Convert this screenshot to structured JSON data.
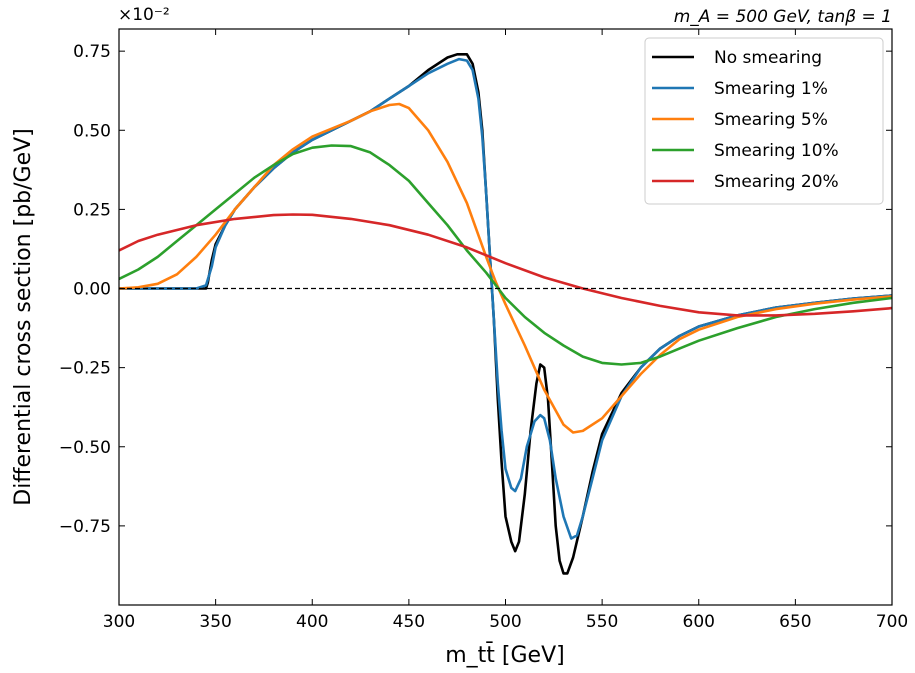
{
  "chart_data": {
    "type": "line",
    "title_right": "m_A = 500 GeV, tanβ = 1",
    "multiplier": "×10⁻²",
    "xlabel": "m_tt̄ [GeV]",
    "ylabel": "Differential cross section [pb/GeV]",
    "xlim": [
      300,
      700
    ],
    "ylim": [
      -1.0,
      0.82
    ],
    "xticks": [
      300,
      350,
      400,
      450,
      500,
      550,
      600,
      650,
      700
    ],
    "xtick_labels": [
      "300",
      "350",
      "400",
      "450",
      "500",
      "550",
      "600",
      "650",
      "700"
    ],
    "yticks": [
      -0.75,
      -0.5,
      -0.25,
      0.0,
      0.25,
      0.5,
      0.75
    ],
    "ytick_labels": [
      "−0.75",
      "−0.50",
      "−0.25",
      "0.00",
      "0.25",
      "0.50",
      "0.75"
    ],
    "reference_line": 0,
    "grid": false,
    "legend_position": "top-right",
    "series": [
      {
        "name": "No smearing",
        "color": "#000000",
        "points": [
          [
            300,
            0
          ],
          [
            345,
            0
          ],
          [
            346,
            0.02
          ],
          [
            348,
            0.09
          ],
          [
            350,
            0.14
          ],
          [
            355,
            0.2
          ],
          [
            360,
            0.25
          ],
          [
            370,
            0.32
          ],
          [
            380,
            0.38
          ],
          [
            390,
            0.43
          ],
          [
            400,
            0.47
          ],
          [
            410,
            0.5
          ],
          [
            420,
            0.53
          ],
          [
            430,
            0.56
          ],
          [
            440,
            0.6
          ],
          [
            450,
            0.64
          ],
          [
            460,
            0.69
          ],
          [
            470,
            0.73
          ],
          [
            475,
            0.74
          ],
          [
            480,
            0.74
          ],
          [
            483,
            0.71
          ],
          [
            486,
            0.62
          ],
          [
            488,
            0.5
          ],
          [
            490,
            0.3
          ],
          [
            492,
            0.1
          ],
          [
            494,
            -0.1
          ],
          [
            496,
            -0.35
          ],
          [
            498,
            -0.55
          ],
          [
            500,
            -0.72
          ],
          [
            503,
            -0.8
          ],
          [
            505,
            -0.83
          ],
          [
            507,
            -0.8
          ],
          [
            510,
            -0.65
          ],
          [
            513,
            -0.45
          ],
          [
            516,
            -0.3
          ],
          [
            518,
            -0.24
          ],
          [
            520,
            -0.25
          ],
          [
            522,
            -0.35
          ],
          [
            524,
            -0.55
          ],
          [
            526,
            -0.75
          ],
          [
            528,
            -0.86
          ],
          [
            530,
            -0.9
          ],
          [
            532,
            -0.9
          ],
          [
            535,
            -0.85
          ],
          [
            540,
            -0.72
          ],
          [
            545,
            -0.58
          ],
          [
            550,
            -0.46
          ],
          [
            560,
            -0.33
          ],
          [
            570,
            -0.25
          ],
          [
            580,
            -0.19
          ],
          [
            590,
            -0.15
          ],
          [
            600,
            -0.12
          ],
          [
            620,
            -0.085
          ],
          [
            640,
            -0.06
          ],
          [
            660,
            -0.045
          ],
          [
            680,
            -0.032
          ],
          [
            700,
            -0.022
          ]
        ]
      },
      {
        "name": "Smearing 1%",
        "color": "#1f77b4",
        "points": [
          [
            300,
            0
          ],
          [
            340,
            0
          ],
          [
            345,
            0.01
          ],
          [
            348,
            0.07
          ],
          [
            350,
            0.13
          ],
          [
            355,
            0.2
          ],
          [
            360,
            0.25
          ],
          [
            370,
            0.32
          ],
          [
            380,
            0.38
          ],
          [
            390,
            0.43
          ],
          [
            400,
            0.47
          ],
          [
            410,
            0.5
          ],
          [
            420,
            0.53
          ],
          [
            430,
            0.56
          ],
          [
            440,
            0.6
          ],
          [
            450,
            0.64
          ],
          [
            460,
            0.68
          ],
          [
            470,
            0.71
          ],
          [
            476,
            0.725
          ],
          [
            480,
            0.72
          ],
          [
            483,
            0.69
          ],
          [
            486,
            0.6
          ],
          [
            488,
            0.48
          ],
          [
            490,
            0.3
          ],
          [
            492,
            0.1
          ],
          [
            494,
            -0.1
          ],
          [
            496,
            -0.3
          ],
          [
            498,
            -0.45
          ],
          [
            500,
            -0.57
          ],
          [
            503,
            -0.63
          ],
          [
            505,
            -0.64
          ],
          [
            508,
            -0.6
          ],
          [
            511,
            -0.5
          ],
          [
            515,
            -0.42
          ],
          [
            518,
            -0.4
          ],
          [
            520,
            -0.41
          ],
          [
            523,
            -0.48
          ],
          [
            526,
            -0.6
          ],
          [
            530,
            -0.72
          ],
          [
            534,
            -0.79
          ],
          [
            537,
            -0.78
          ],
          [
            540,
            -0.72
          ],
          [
            545,
            -0.6
          ],
          [
            550,
            -0.48
          ],
          [
            560,
            -0.34
          ],
          [
            570,
            -0.25
          ],
          [
            580,
            -0.19
          ],
          [
            590,
            -0.15
          ],
          [
            600,
            -0.12
          ],
          [
            620,
            -0.085
          ],
          [
            640,
            -0.06
          ],
          [
            660,
            -0.045
          ],
          [
            680,
            -0.032
          ],
          [
            700,
            -0.022
          ]
        ]
      },
      {
        "name": "Smearing 5%",
        "color": "#ff7f0e",
        "points": [
          [
            300,
            0
          ],
          [
            310,
            0.004
          ],
          [
            320,
            0.015
          ],
          [
            330,
            0.045
          ],
          [
            340,
            0.1
          ],
          [
            350,
            0.17
          ],
          [
            360,
            0.25
          ],
          [
            370,
            0.32
          ],
          [
            380,
            0.39
          ],
          [
            390,
            0.44
          ],
          [
            400,
            0.48
          ],
          [
            410,
            0.505
          ],
          [
            420,
            0.53
          ],
          [
            430,
            0.56
          ],
          [
            440,
            0.58
          ],
          [
            445,
            0.583
          ],
          [
            450,
            0.57
          ],
          [
            460,
            0.5
          ],
          [
            470,
            0.4
          ],
          [
            480,
            0.27
          ],
          [
            490,
            0.1
          ],
          [
            495,
            0.02
          ],
          [
            500,
            -0.05
          ],
          [
            510,
            -0.18
          ],
          [
            520,
            -0.32
          ],
          [
            530,
            -0.43
          ],
          [
            535,
            -0.455
          ],
          [
            540,
            -0.45
          ],
          [
            550,
            -0.41
          ],
          [
            560,
            -0.34
          ],
          [
            570,
            -0.27
          ],
          [
            580,
            -0.21
          ],
          [
            590,
            -0.16
          ],
          [
            600,
            -0.13
          ],
          [
            620,
            -0.09
          ],
          [
            640,
            -0.065
          ],
          [
            660,
            -0.048
          ],
          [
            680,
            -0.035
          ],
          [
            700,
            -0.025
          ]
        ]
      },
      {
        "name": "Smearing 10%",
        "color": "#2ca02c",
        "points": [
          [
            300,
            0.03
          ],
          [
            310,
            0.06
          ],
          [
            320,
            0.1
          ],
          [
            330,
            0.15
          ],
          [
            340,
            0.2
          ],
          [
            350,
            0.25
          ],
          [
            360,
            0.3
          ],
          [
            370,
            0.35
          ],
          [
            380,
            0.39
          ],
          [
            390,
            0.425
          ],
          [
            400,
            0.445
          ],
          [
            410,
            0.452
          ],
          [
            420,
            0.45
          ],
          [
            430,
            0.43
          ],
          [
            440,
            0.39
          ],
          [
            450,
            0.34
          ],
          [
            460,
            0.27
          ],
          [
            470,
            0.2
          ],
          [
            480,
            0.12
          ],
          [
            490,
            0.05
          ],
          [
            500,
            -0.03
          ],
          [
            510,
            -0.09
          ],
          [
            520,
            -0.14
          ],
          [
            530,
            -0.18
          ],
          [
            540,
            -0.215
          ],
          [
            550,
            -0.235
          ],
          [
            560,
            -0.24
          ],
          [
            570,
            -0.235
          ],
          [
            580,
            -0.215
          ],
          [
            590,
            -0.19
          ],
          [
            600,
            -0.165
          ],
          [
            620,
            -0.125
          ],
          [
            640,
            -0.09
          ],
          [
            660,
            -0.065
          ],
          [
            680,
            -0.045
          ],
          [
            700,
            -0.03
          ]
        ]
      },
      {
        "name": "Smearing 20%",
        "color": "#d62728",
        "points": [
          [
            300,
            0.12
          ],
          [
            310,
            0.15
          ],
          [
            320,
            0.17
          ],
          [
            340,
            0.2
          ],
          [
            360,
            0.22
          ],
          [
            380,
            0.232
          ],
          [
            390,
            0.234
          ],
          [
            400,
            0.233
          ],
          [
            420,
            0.22
          ],
          [
            440,
            0.2
          ],
          [
            460,
            0.17
          ],
          [
            480,
            0.13
          ],
          [
            500,
            0.08
          ],
          [
            520,
            0.035
          ],
          [
            540,
            0
          ],
          [
            560,
            -0.03
          ],
          [
            580,
            -0.055
          ],
          [
            600,
            -0.075
          ],
          [
            620,
            -0.085
          ],
          [
            640,
            -0.085
          ],
          [
            660,
            -0.08
          ],
          [
            680,
            -0.072
          ],
          [
            700,
            -0.062
          ]
        ]
      }
    ]
  }
}
